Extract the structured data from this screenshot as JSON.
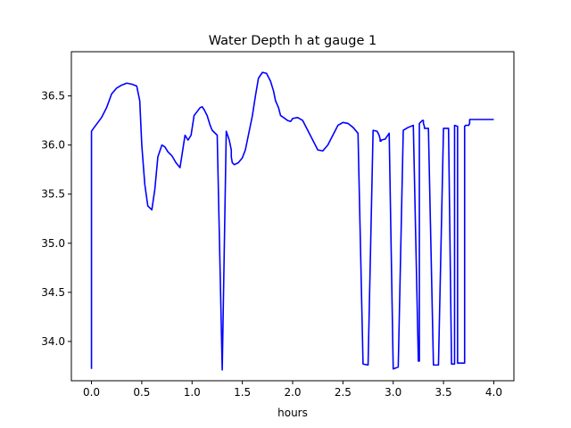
{
  "chart_data": {
    "type": "line",
    "title": "Water Depth h at gauge 1",
    "xlabel": "hours",
    "ylabel": "",
    "xlim": [
      -0.2,
      4.2
    ],
    "ylim": [
      33.6,
      36.95
    ],
    "xticks": [
      0.0,
      0.5,
      1.0,
      1.5,
      2.0,
      2.5,
      3.0,
      3.5,
      4.0
    ],
    "xtick_labels": [
      "0.0",
      "0.5",
      "1.0",
      "1.5",
      "2.0",
      "2.5",
      "3.0",
      "3.5",
      "4.0"
    ],
    "yticks": [
      34.0,
      34.5,
      35.0,
      35.5,
      36.0,
      36.5
    ],
    "ytick_labels": [
      "34.0",
      "34.5",
      "35.0",
      "35.5",
      "36.0",
      "36.5"
    ],
    "grid": false,
    "series": [
      {
        "color": "#0000ff",
        "x": [
          0.0,
          0.0,
          0.02,
          0.1,
          0.15,
          0.2,
          0.25,
          0.3,
          0.35,
          0.4,
          0.45,
          0.48,
          0.5,
          0.53,
          0.56,
          0.6,
          0.63,
          0.66,
          0.7,
          0.73,
          0.76,
          0.8,
          0.84,
          0.88,
          0.9,
          0.93,
          0.96,
          0.99,
          1.02,
          1.05,
          1.08,
          1.1,
          1.12,
          1.15,
          1.18,
          1.2,
          1.25,
          1.3,
          1.34,
          1.37,
          1.38,
          1.39,
          1.39,
          1.4,
          1.42,
          1.46,
          1.5,
          1.53,
          1.56,
          1.6,
          1.63,
          1.66,
          1.7,
          1.74,
          1.78,
          1.81,
          1.83,
          1.86,
          1.88,
          1.91,
          1.95,
          1.98,
          2.0,
          2.05,
          2.1,
          2.15,
          2.2,
          2.25,
          2.3,
          2.35,
          2.4,
          2.45,
          2.5,
          2.55,
          2.6,
          2.65,
          2.7,
          2.75,
          2.8,
          2.84,
          2.86,
          2.87,
          2.87,
          2.88,
          2.88,
          2.92,
          2.96,
          3.0,
          3.05,
          3.1,
          3.15,
          3.2,
          3.25,
          3.26,
          3.26,
          3.28,
          3.29,
          3.3,
          3.3,
          3.31,
          3.31,
          3.35,
          3.4,
          3.45,
          3.5,
          3.55,
          3.58,
          3.6,
          3.61,
          3.61,
          3.64,
          3.64,
          3.7,
          3.71,
          3.71,
          3.72,
          3.72,
          3.75,
          3.76,
          3.76,
          3.8,
          3.9,
          3.95,
          4.0
        ],
        "y": [
          33.72,
          36.14,
          36.17,
          36.28,
          36.38,
          36.52,
          36.58,
          36.61,
          36.63,
          36.62,
          36.6,
          36.45,
          36.0,
          35.6,
          35.38,
          35.34,
          35.55,
          35.88,
          36.0,
          35.98,
          35.93,
          35.89,
          35.82,
          35.77,
          35.9,
          36.1,
          36.05,
          36.1,
          36.3,
          36.34,
          36.38,
          36.39,
          36.36,
          36.3,
          36.2,
          36.15,
          36.1,
          33.71,
          36.14,
          36.05,
          36.0,
          35.95,
          35.88,
          35.82,
          35.8,
          35.82,
          35.87,
          35.95,
          36.1,
          36.3,
          36.5,
          36.68,
          36.74,
          36.73,
          36.65,
          36.55,
          36.45,
          36.38,
          36.3,
          36.28,
          36.25,
          36.24,
          36.27,
          36.28,
          36.25,
          36.15,
          36.05,
          35.95,
          35.94,
          36.0,
          36.1,
          36.2,
          36.23,
          36.22,
          36.18,
          36.12,
          33.77,
          33.76,
          36.15,
          36.14,
          36.1,
          36.06,
          36.04,
          36.04,
          36.05,
          36.06,
          36.12,
          33.72,
          33.74,
          36.15,
          36.18,
          36.2,
          33.8,
          33.8,
          36.22,
          36.24,
          36.25,
          36.25,
          36.22,
          36.19,
          36.17,
          36.17,
          33.76,
          33.76,
          36.17,
          36.17,
          33.77,
          33.77,
          33.77,
          36.2,
          36.19,
          33.78,
          33.78,
          33.78,
          36.19,
          36.2,
          36.2,
          36.2,
          36.22,
          36.26,
          36.26,
          36.26,
          36.26,
          36.26
        ]
      }
    ]
  }
}
